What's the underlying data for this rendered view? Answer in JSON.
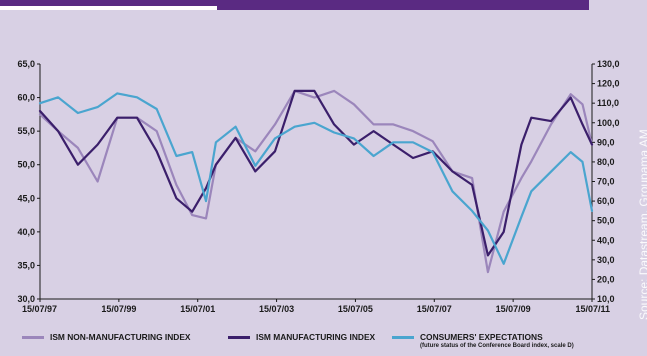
{
  "source_note": "Source: Datastream, Groupama AM",
  "chart_data": {
    "type": "line",
    "x_ticks": [
      "15/07/97",
      "15/07/99",
      "15/07/01",
      "15/07/03",
      "15/07/05",
      "15/07/07",
      "15/07/09",
      "15/07/11"
    ],
    "x_range": [
      "1997-07-15",
      "2011-07-15"
    ],
    "y_left": {
      "range": [
        30,
        65
      ],
      "ticks": [
        "30,0",
        "35,0",
        "40,0",
        "45,0",
        "50,0",
        "55,0",
        "60,0",
        "65,0"
      ]
    },
    "y_right": {
      "range": [
        10,
        130
      ],
      "ticks": [
        "10,0",
        "20,0",
        "30,0",
        "40,0",
        "50,0",
        "60,0",
        "70,0",
        "80,0",
        "90,0",
        "100,0",
        "110,0",
        "120,0",
        "130,0"
      ]
    },
    "grid": false,
    "legend_position": "bottom",
    "series": [
      {
        "name": "ISM NON-MANUFACTURING INDEX",
        "axis": "left",
        "color": "#9b86bb",
        "x": [
          1997.54,
          1998.0,
          1998.5,
          1999.0,
          1999.5,
          2000.0,
          2000.5,
          2001.0,
          2001.4,
          2001.75,
          2002.0,
          2002.5,
          2003.0,
          2003.5,
          2004.0,
          2004.5,
          2005.0,
          2005.5,
          2006.0,
          2006.5,
          2007.0,
          2007.5,
          2008.0,
          2008.5,
          2008.9,
          2009.3,
          2009.75,
          2010.0,
          2010.5,
          2011.0,
          2011.3,
          2011.54
        ],
        "y": [
          57.5,
          55.0,
          52.5,
          47.5,
          57.0,
          57.0,
          55.0,
          47.0,
          42.5,
          42.0,
          50.0,
          54.0,
          52.0,
          56.0,
          61.0,
          60.0,
          61.0,
          59.0,
          56.0,
          56.0,
          55.0,
          53.5,
          49.0,
          48.0,
          34.0,
          43.0,
          48.0,
          50.5,
          56.0,
          60.5,
          59.0,
          53.0
        ]
      },
      {
        "name": "ISM MANUFACTURING INDEX",
        "axis": "left",
        "color": "#3b1f6b",
        "x": [
          1997.54,
          1998.0,
          1998.5,
          1999.0,
          1999.5,
          2000.0,
          2000.5,
          2001.0,
          2001.4,
          2001.75,
          2002.0,
          2002.5,
          2003.0,
          2003.5,
          2004.0,
          2004.5,
          2005.0,
          2005.5,
          2006.0,
          2006.5,
          2007.0,
          2007.5,
          2008.0,
          2008.5,
          2008.9,
          2009.3,
          2009.75,
          2010.0,
          2010.5,
          2011.0,
          2011.3,
          2011.54
        ],
        "y": [
          58.0,
          55.0,
          50.0,
          53.0,
          57.0,
          57.0,
          52.0,
          45.0,
          43.0,
          46.5,
          50.0,
          54.0,
          49.0,
          52.0,
          61.0,
          61.0,
          56.0,
          53.0,
          55.0,
          53.0,
          51.0,
          52.0,
          49.0,
          47.0,
          36.5,
          40.0,
          53.0,
          57.0,
          56.5,
          60.0,
          56.0,
          53.0
        ]
      },
      {
        "name": "CONSUMERS' EXPECTATIONS",
        "note": "(future status of the Conference Board index, scale D)",
        "axis": "right",
        "color": "#4aa5cf",
        "x": [
          1997.54,
          1998.0,
          1998.5,
          1999.0,
          1999.5,
          2000.0,
          2000.5,
          2001.0,
          2001.4,
          2001.75,
          2002.0,
          2002.5,
          2003.0,
          2003.5,
          2004.0,
          2004.5,
          2005.0,
          2005.5,
          2006.0,
          2006.5,
          2007.0,
          2007.5,
          2008.0,
          2008.5,
          2008.9,
          2009.3,
          2009.75,
          2010.0,
          2010.5,
          2011.0,
          2011.3,
          2011.54
        ],
        "y": [
          110.0,
          113.0,
          105.0,
          108.0,
          115.0,
          113.0,
          107.0,
          83.0,
          85.0,
          60.0,
          90.0,
          98.0,
          78.0,
          92.0,
          98.0,
          100.0,
          95.0,
          92.0,
          83.0,
          90.0,
          90.0,
          85.0,
          65.0,
          55.0,
          45.0,
          28.0,
          52.0,
          65.0,
          75.0,
          85.0,
          80.0,
          55.0
        ]
      }
    ]
  }
}
